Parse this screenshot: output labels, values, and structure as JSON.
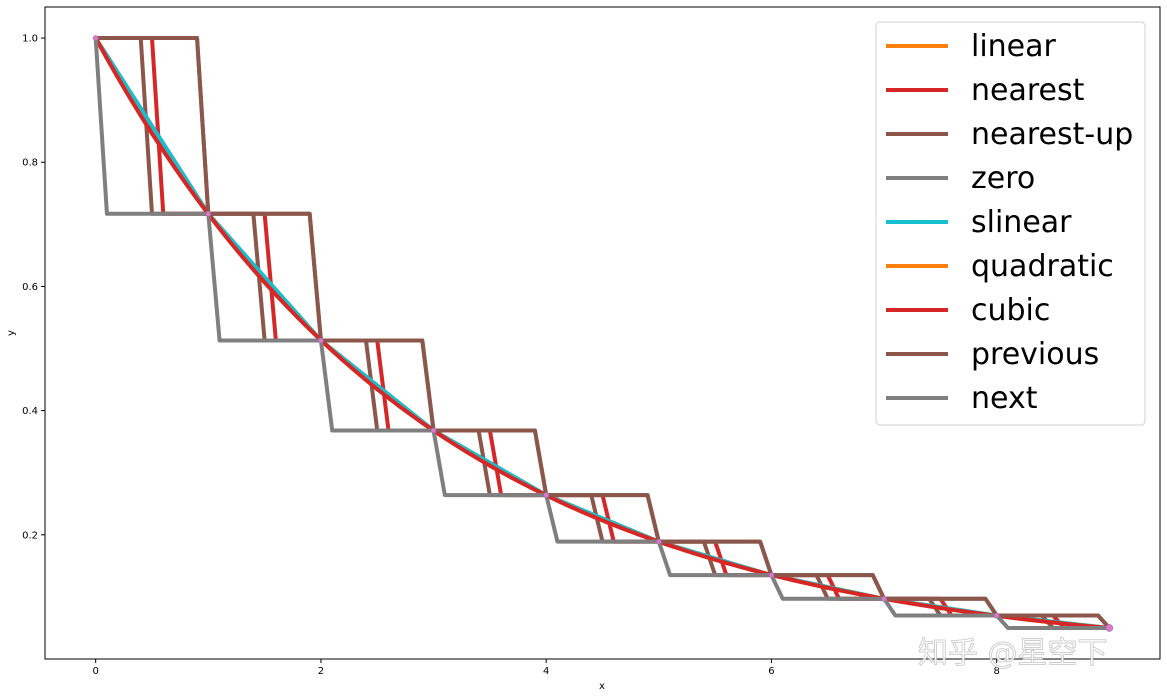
{
  "chart_data": {
    "type": "line",
    "xlabel": "x",
    "ylabel": "y",
    "xlim": [
      -0.45,
      9.45
    ],
    "ylim": [
      0.0,
      1.05
    ],
    "xticks": [
      0,
      2,
      4,
      6,
      8
    ],
    "yticks": [
      0.2,
      0.4,
      0.6,
      0.8,
      1.0
    ],
    "xtick_labels": [
      "0",
      "2",
      "4",
      "6",
      "8"
    ],
    "ytick_labels": [
      "0.2",
      "0.4",
      "0.6",
      "0.8",
      "1.0"
    ],
    "grid": false,
    "legend_position": "top-right",
    "data_points": {
      "x": [
        0,
        1,
        2,
        3,
        4,
        5,
        6,
        7,
        8,
        9
      ],
      "y": [
        1.0,
        0.717,
        0.513,
        0.368,
        0.264,
        0.189,
        0.135,
        0.097,
        0.07,
        0.05
      ],
      "color": "#e377c2"
    },
    "series": [
      {
        "name": "linear",
        "kind": "linear",
        "color": "#ff7f0e"
      },
      {
        "name": "nearest",
        "kind": "nearest",
        "color": "#d62728"
      },
      {
        "name": "nearest-up",
        "kind": "nearest-up",
        "color": "#8c564b"
      },
      {
        "name": "zero",
        "kind": "zero",
        "color": "#7f7f7f"
      },
      {
        "name": "slinear",
        "kind": "slinear",
        "color": "#17becf"
      },
      {
        "name": "quadratic",
        "kind": "quadratic",
        "color": "#ff7f0e"
      },
      {
        "name": "cubic",
        "kind": "cubic",
        "color": "#d62728"
      },
      {
        "name": "previous",
        "kind": "previous",
        "color": "#8c564b"
      },
      {
        "name": "next",
        "kind": "next",
        "color": "#7f7f7f"
      }
    ]
  },
  "watermark": {
    "text": "知乎 @星空下"
  }
}
